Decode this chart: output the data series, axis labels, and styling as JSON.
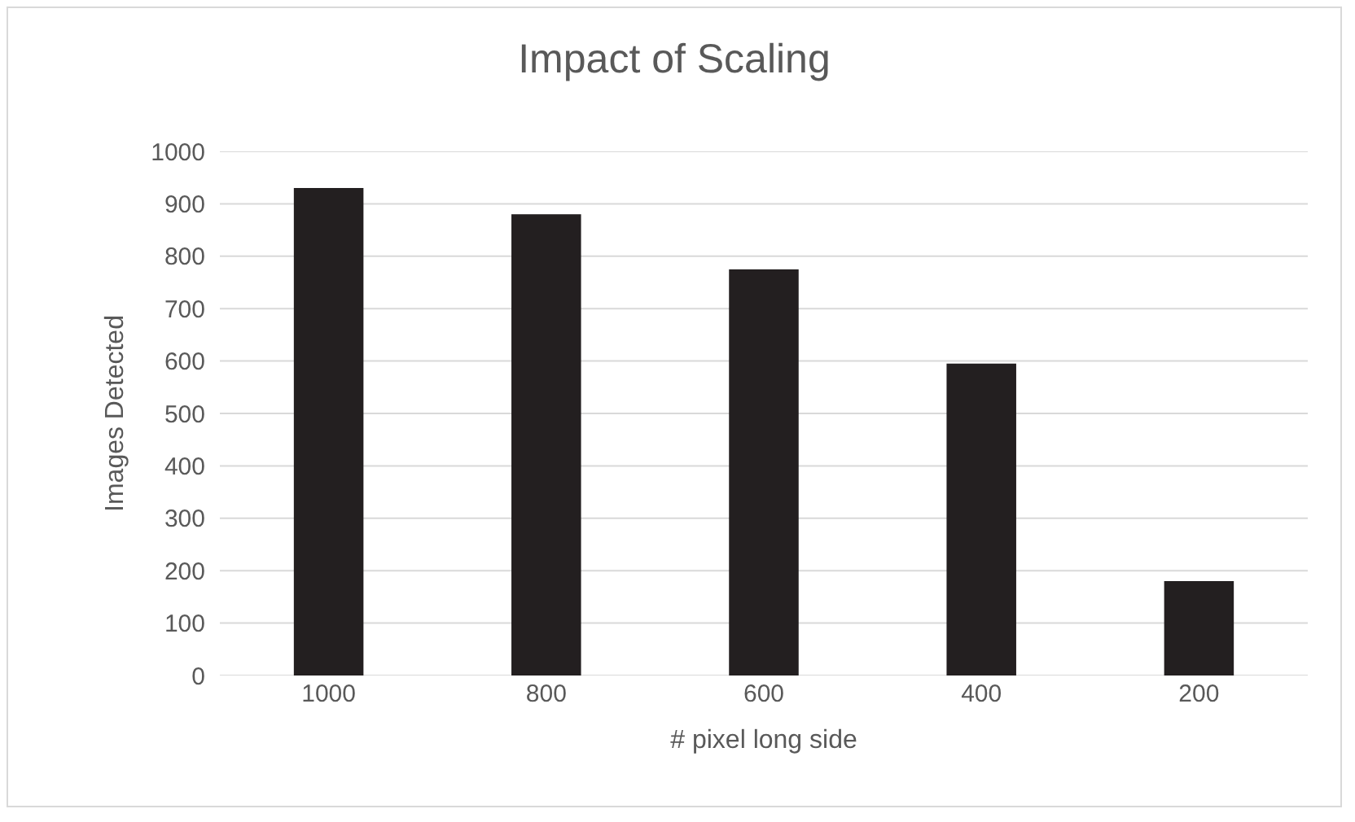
{
  "chart_data": {
    "type": "bar",
    "title": "Impact of Scaling",
    "xlabel": "# pixel long side",
    "ylabel": "Images Detected",
    "categories": [
      "1000",
      "800",
      "600",
      "400",
      "200"
    ],
    "values": [
      930,
      880,
      775,
      595,
      180
    ],
    "color": "#231f20",
    "ylim": [
      0,
      1000
    ],
    "yticks": [
      0,
      100,
      200,
      300,
      400,
      500,
      600,
      700,
      800,
      900,
      1000
    ],
    "grid": "y"
  }
}
